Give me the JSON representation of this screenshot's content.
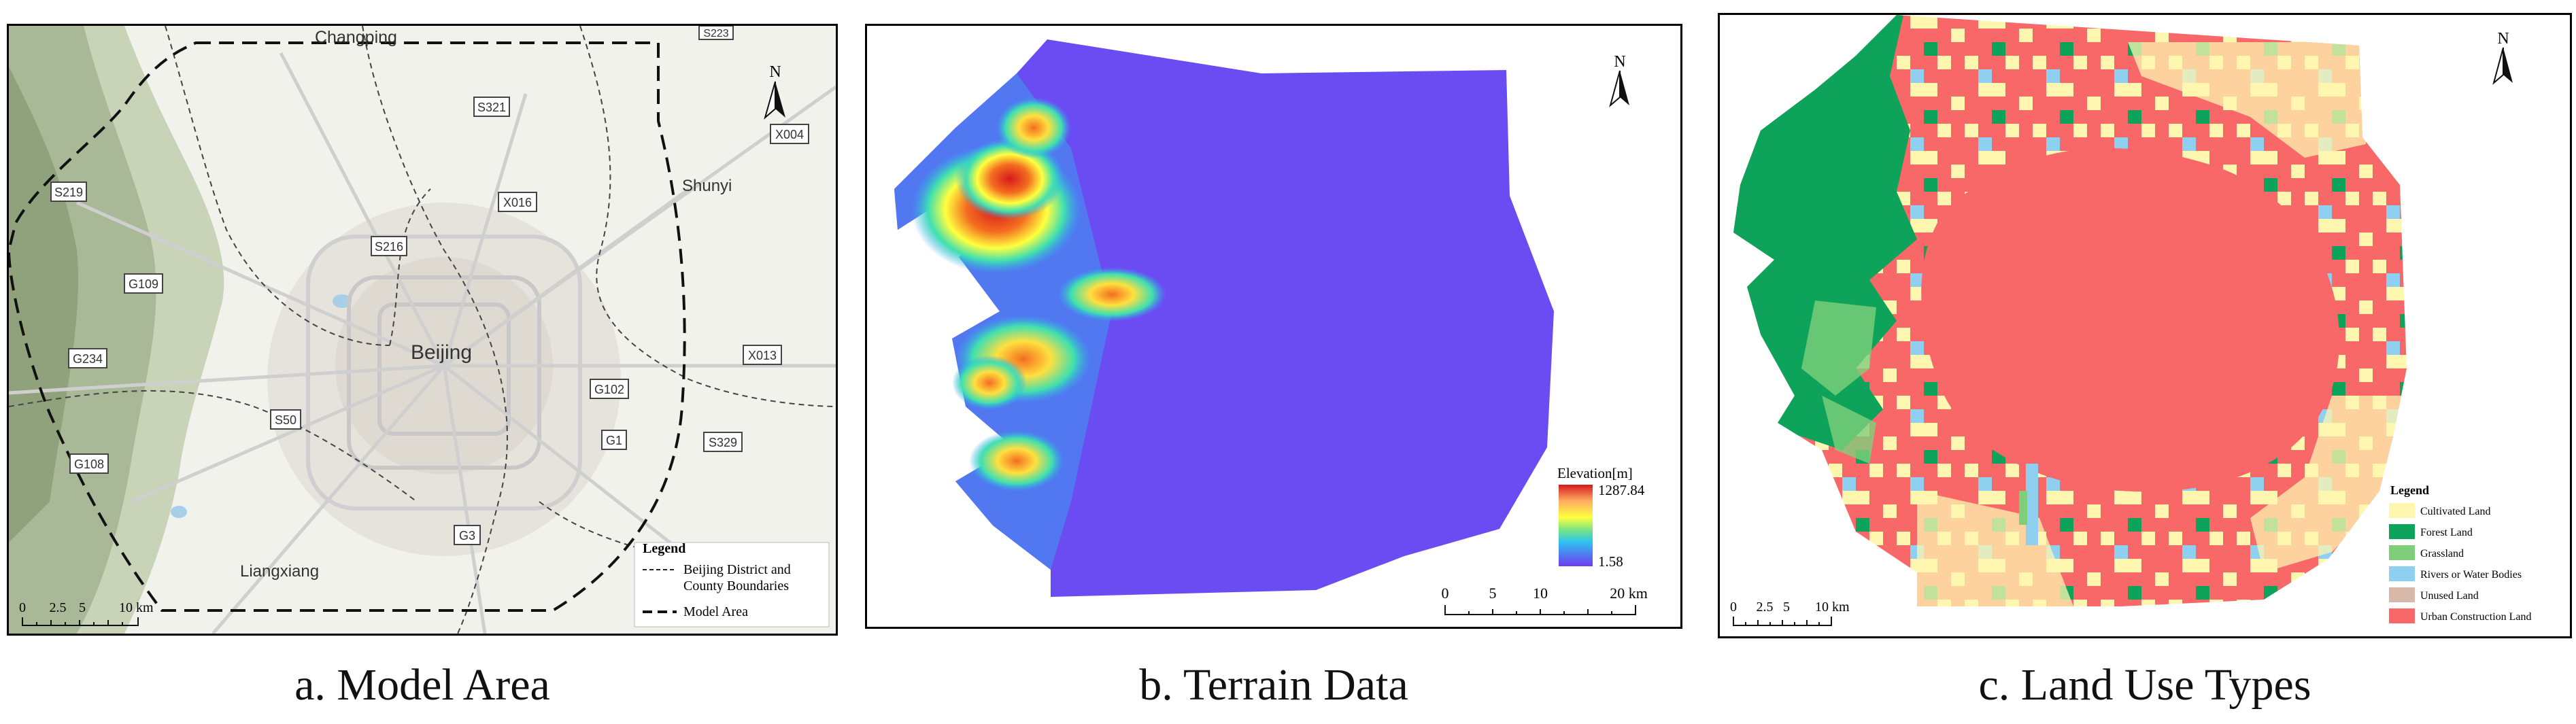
{
  "panels": [
    {
      "id": "a",
      "caption": "a. Model Area",
      "place_labels": [
        "Changping",
        "Shunyi",
        "Beijing",
        "Liangxiang"
      ],
      "road_labels": [
        "S223",
        "S321",
        "X004",
        "S219",
        "X016",
        "S216",
        "G109",
        "G234",
        "X013",
        "G102",
        "S50",
        "G1",
        "S329",
        "G108",
        "G3"
      ],
      "north_label": "N",
      "legend": {
        "title": "Legend",
        "items": [
          {
            "label_line1": "Beijing District and",
            "label_line2": "County Boundaries",
            "style": "dashed-thin"
          },
          {
            "label_line1": "Model Area",
            "label_line2": "",
            "style": "dashed-thick"
          }
        ]
      },
      "scalebar": {
        "ticks": [
          "0",
          "2.5",
          "5",
          "10 km"
        ]
      }
    },
    {
      "id": "b",
      "caption": "b. Terrain Data",
      "north_label": "N",
      "colorbar": {
        "title": "Elevation[m]",
        "max_label": "1287.84",
        "min_label": "1.58",
        "max": 1287.84,
        "min": 1.58,
        "colors": [
          "#d7191c",
          "#fdae61",
          "#ffff3f",
          "#7ae582",
          "#2ec4f0",
          "#4f7df0",
          "#6f3cf0"
        ]
      },
      "scalebar": {
        "ticks": [
          "0",
          "5",
          "10",
          "20 km"
        ]
      }
    },
    {
      "id": "c",
      "caption": "c. Land Use Types",
      "north_label": "N",
      "legend": {
        "title": "Legend",
        "items": [
          {
            "label": "Cultivated Land",
            "color": "#fff6b0"
          },
          {
            "label": "Forest Land",
            "color": "#0ea35a"
          },
          {
            "label": "Grassland",
            "color": "#7fcf7a"
          },
          {
            "label": "Rivers or Water Bodies",
            "color": "#8fd0f0"
          },
          {
            "label": "Unused Land",
            "color": "#d8b8a8"
          },
          {
            "label": "Urban Construction Land",
            "color": "#f86868"
          }
        ]
      },
      "scalebar": {
        "ticks": [
          "0",
          "2.5",
          "5",
          "10 km"
        ]
      }
    }
  ]
}
